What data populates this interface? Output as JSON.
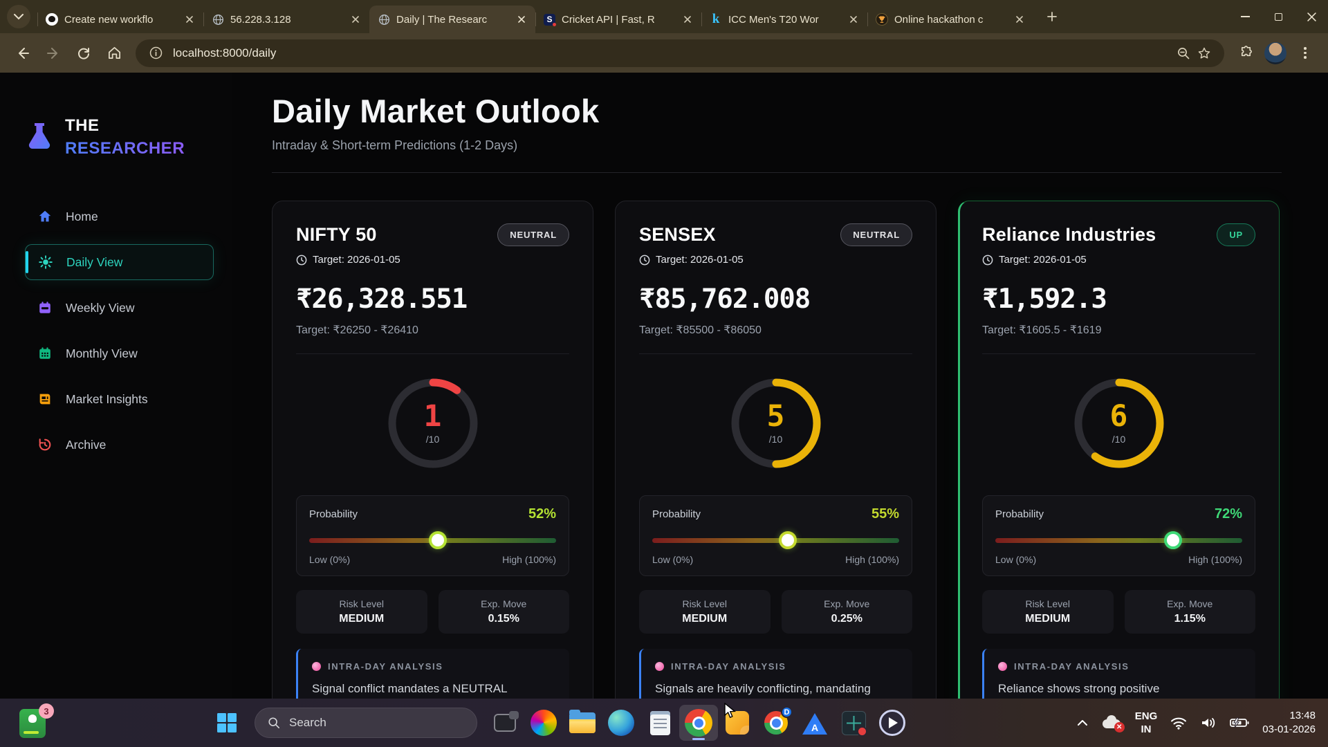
{
  "browser": {
    "tabs": [
      {
        "title": "Create new workflo",
        "favicon": "github",
        "active": false
      },
      {
        "title": "56.228.3.128",
        "favicon": "globe",
        "active": false
      },
      {
        "title": "Daily | The Researc",
        "favicon": "globe",
        "active": true
      },
      {
        "title": "Cricket API | Fast, R",
        "favicon": "s-badge",
        "active": false
      },
      {
        "title": "ICC Men's T20 Wor",
        "favicon": "kaggle",
        "active": false
      },
      {
        "title": "Online hackathon c",
        "favicon": "trophy",
        "active": false
      }
    ],
    "url": "localhost:8000/daily"
  },
  "sidebar": {
    "logo_top": "THE",
    "logo_bottom": "RESEARCHER",
    "items": [
      {
        "label": "Home",
        "icon": "home-icon",
        "color": "#4f7df9",
        "active": false
      },
      {
        "label": "Daily View",
        "icon": "sun-icon",
        "color": "#2dd4bf",
        "active": true
      },
      {
        "label": "Weekly View",
        "icon": "calendar-icon",
        "color": "#9061f9",
        "active": false
      },
      {
        "label": "Monthly View",
        "icon": "calendar-grid-icon",
        "color": "#10b981",
        "active": false
      },
      {
        "label": "Market Insights",
        "icon": "news-icon",
        "color": "#f59e0b",
        "active": false
      },
      {
        "label": "Archive",
        "icon": "history-icon",
        "color": "#f05252",
        "active": false
      }
    ]
  },
  "page": {
    "title": "Daily Market Outlook",
    "subtitle": "Intraday & Short-term Predictions (1-2 Days)"
  },
  "cards": [
    {
      "name": "NIFTY 50",
      "badge": "NEUTRAL",
      "badge_type": "neutral",
      "target_date": "Target: 2026-01-05",
      "price": "₹26,328.551",
      "target_range": "Target: ₹26250 - ₹26410",
      "score": 1,
      "score_suffix": "/10",
      "score_color": "#ef4444",
      "probability_label": "Probability",
      "probability_pct": 52,
      "probability_text": "52%",
      "probability_color": "#b4e233",
      "low_label": "Low (0%)",
      "high_label": "High (100%)",
      "risk_label": "Risk Level",
      "risk_value": "MEDIUM",
      "move_label": "Exp. Move",
      "move_value": "0.15%",
      "analysis_label": "INTRA-DAY ANALYSIS",
      "analysis_text": "Signal conflict mandates a NEUTRAL",
      "accent": false
    },
    {
      "name": "SENSEX",
      "badge": "NEUTRAL",
      "badge_type": "neutral",
      "target_date": "Target: 2026-01-05",
      "price": "₹85,762.008",
      "target_range": "Target: ₹85500 - ₹86050",
      "score": 5,
      "score_suffix": "/10",
      "score_color": "#eab308",
      "probability_label": "Probability",
      "probability_pct": 55,
      "probability_text": "55%",
      "probability_color": "#c3d92e",
      "low_label": "Low (0%)",
      "high_label": "High (100%)",
      "risk_label": "Risk Level",
      "risk_value": "MEDIUM",
      "move_label": "Exp. Move",
      "move_value": "0.25%",
      "analysis_label": "INTRA-DAY ANALYSIS",
      "analysis_text": "Signals are heavily conflicting, mandating",
      "accent": false
    },
    {
      "name": "Reliance Industries",
      "badge": "UP",
      "badge_type": "up",
      "target_date": "Target: 2026-01-05",
      "price": "₹1,592.3",
      "target_range": "Target: ₹1605.5 - ₹1619",
      "score": 6,
      "score_suffix": "/10",
      "score_color": "#eab308",
      "probability_label": "Probability",
      "probability_pct": 72,
      "probability_text": "72%",
      "probability_color": "#3fd977",
      "low_label": "Low (0%)",
      "high_label": "High (100%)",
      "risk_label": "Risk Level",
      "risk_value": "MEDIUM",
      "move_label": "Exp. Move",
      "move_value": "1.15%",
      "analysis_label": "INTRA-DAY ANALYSIS",
      "analysis_text": "Reliance shows strong positive",
      "accent": true
    }
  ],
  "taskbar": {
    "pinned_badge": "3",
    "search_label": "Search",
    "icons": [
      "task-view",
      "copilot",
      "file-explorer",
      "edge",
      "notepad",
      "chrome",
      "sticky-note",
      "chrome-profile",
      "reader",
      "grid-tool",
      "media-player"
    ],
    "tray": {
      "lang_line1": "ENG",
      "lang_line2": "IN",
      "time": "13:48",
      "date": "03-01-2026"
    }
  }
}
